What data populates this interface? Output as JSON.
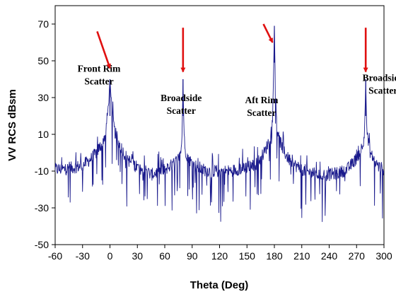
{
  "chart_data": {
    "type": "line",
    "title": "",
    "xlabel": "Theta (Deg)",
    "ylabel": "VV RCS dBsm",
    "xlim": [
      -60,
      300
    ],
    "ylim": [
      -50,
      80
    ],
    "x_ticks": [
      -60,
      -30,
      0,
      30,
      60,
      90,
      120,
      150,
      180,
      210,
      240,
      270,
      300
    ],
    "y_ticks": [
      -50,
      -30,
      -10,
      10,
      30,
      50,
      70
    ],
    "grid": false,
    "legend": "none",
    "series": [
      {
        "color": "#1a1a8c",
        "x": [
          -60,
          -50,
          -40,
          -30,
          -20,
          -15,
          -10,
          -5,
          -2,
          -1,
          0,
          1,
          2,
          5,
          10,
          15,
          20,
          30,
          40,
          45,
          50,
          60,
          70,
          75,
          78,
          79,
          80,
          81,
          82,
          85,
          90,
          100,
          110,
          120,
          130,
          140,
          150,
          160,
          165,
          170,
          175,
          177,
          178,
          179,
          180,
          181,
          182,
          183,
          185,
          190,
          195,
          200,
          210,
          220,
          230,
          240,
          250,
          260,
          265,
          270,
          275,
          278,
          279,
          280,
          281,
          282,
          285,
          290,
          295,
          300
        ],
        "y": [
          -9,
          -9,
          -8,
          -7,
          -3,
          0,
          4,
          10,
          24,
          32,
          40,
          32,
          24,
          12,
          5,
          0,
          -4,
          -8,
          -10,
          -12,
          -11,
          -9,
          -6,
          -3,
          2,
          12,
          40,
          12,
          2,
          -2,
          -6,
          -9,
          -10,
          -10,
          -10,
          -9,
          -8,
          -6,
          -3,
          1,
          8,
          14,
          22,
          40,
          69,
          40,
          22,
          14,
          8,
          1,
          -3,
          -6,
          -9,
          -11,
          -12,
          -12,
          -11,
          -9,
          -6,
          -3,
          2,
          8,
          16,
          40,
          16,
          8,
          0,
          -5,
          -8,
          -9
        ]
      }
    ]
  },
  "annotations": [
    {
      "lines": [
        "Front Rim",
        "Scatter"
      ],
      "x": 0,
      "y": 40
    },
    {
      "lines": [
        "Broadside",
        "Scatter"
      ],
      "x": 80,
      "y": 40
    },
    {
      "lines": [
        "Aft Rim",
        "Scatter"
      ],
      "x": 180,
      "y": 69
    },
    {
      "lines": [
        "Broadside",
        "Scatter"
      ],
      "x": 280,
      "y": 40
    }
  ],
  "colors": {
    "trace": "#1a1a8c",
    "arrow": "#e01010",
    "axis": "#000000"
  }
}
